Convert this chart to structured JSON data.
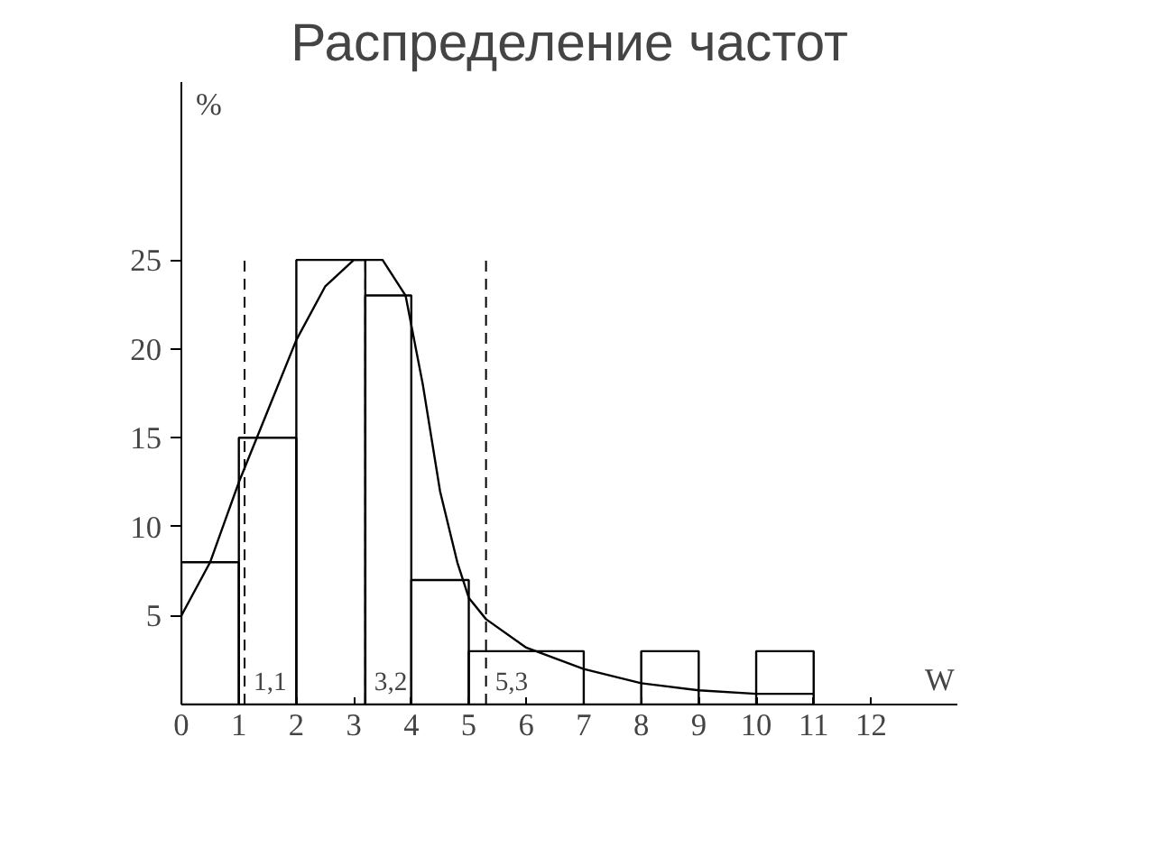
{
  "chart_data": {
    "type": "histogram",
    "title": "Распределение частот",
    "xlabel": "W",
    "ylabel": "%",
    "xlim": [
      0,
      13.5
    ],
    "ylim": [
      0,
      35
    ],
    "xticks": [
      0,
      1,
      2,
      3,
      4,
      5,
      6,
      7,
      8,
      9,
      10,
      11,
      12
    ],
    "yticks": [
      5,
      10,
      15,
      20,
      25
    ],
    "grid": false,
    "series": [
      {
        "color": "#000000",
        "bins": [
          0,
          1,
          2,
          3.2,
          4,
          5,
          7,
          8,
          9,
          10,
          11
        ],
        "values": [
          8,
          15,
          25,
          23,
          7,
          3,
          0,
          3,
          0,
          3
        ]
      },
      {
        "type": "line",
        "color": "#000000",
        "x": [
          0,
          0.5,
          1,
          1.5,
          2,
          2.5,
          3,
          3.5,
          3.9,
          4.2,
          4.5,
          4.8,
          5,
          5.3,
          6,
          7,
          8,
          9,
          10,
          11
        ],
        "values": [
          5,
          8,
          12.5,
          16.5,
          20.5,
          23.5,
          25,
          25,
          23,
          18,
          12,
          8,
          6,
          4.8,
          3.2,
          2,
          1.2,
          0.8,
          0.6,
          0.6
        ]
      }
    ],
    "ref_lines": [
      {
        "axis": "x",
        "value": 1.1,
        "label": "1,1",
        "line_style": "dashed"
      },
      {
        "axis": "x",
        "value": 3.2,
        "label": "3,2",
        "line_style": "dashed"
      },
      {
        "axis": "x",
        "value": 5.3,
        "label": "5,3",
        "line_style": "dashed"
      }
    ]
  }
}
